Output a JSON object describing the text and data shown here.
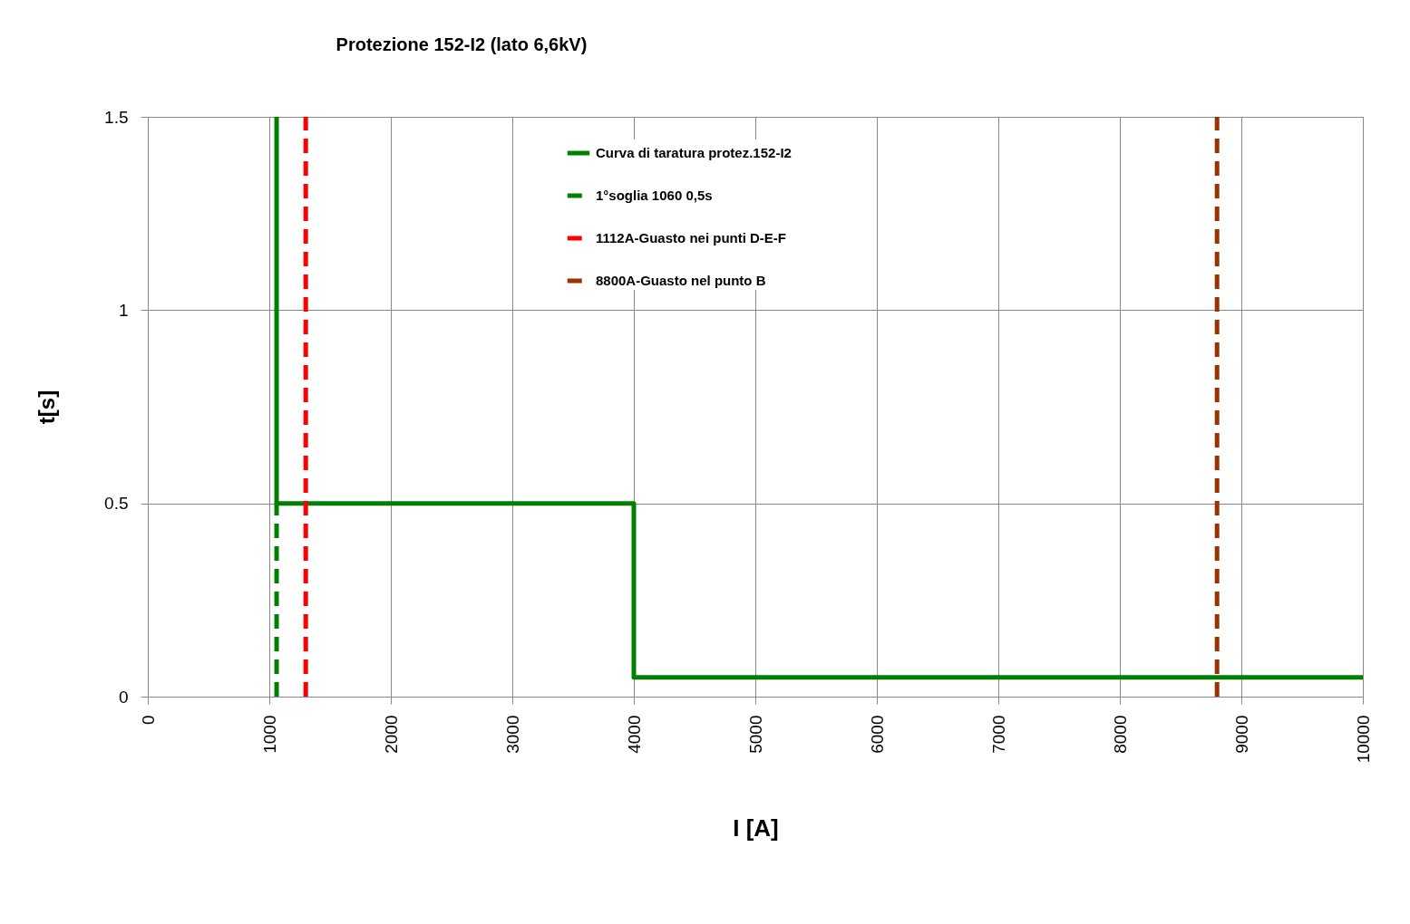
{
  "chart_data": {
    "type": "line",
    "title": "Protezione 152-I2 (lato 6,6kV)",
    "xlabel": "I [A]",
    "ylabel": "t[s]",
    "xlim": [
      0,
      10000
    ],
    "xticks": [
      0,
      1000,
      2000,
      3000,
      4000,
      5000,
      6000,
      7000,
      8000,
      9000,
      10000
    ],
    "ylim": [
      0,
      1.5
    ],
    "yticks": [
      0,
      0.5,
      1,
      1.5
    ],
    "grid": true,
    "legend": "top",
    "marker": "none",
    "series": [
      {
        "name": "Curva di taratura protez.152-I2",
        "color": "#008000",
        "line_style": "solid",
        "x": [
          1060,
          1060,
          4000,
          4000,
          10000
        ],
        "values": [
          1.5,
          0.5,
          0.5,
          0.05,
          0.05
        ]
      },
      {
        "name": "1°soglia 1060 0,5s",
        "color": "#008000",
        "line_style": "dashed",
        "x": [
          1060,
          1060
        ],
        "values": [
          0,
          0.5
        ]
      },
      {
        "name": "1112A-Guasto nei punti D-E-F",
        "color": "#ff0000",
        "line_style": "dashed",
        "x": [
          1300,
          1300
        ],
        "values": [
          0,
          1.5
        ]
      },
      {
        "name": "8800A-Guasto nel punto B",
        "color": "#993300",
        "line_style": "dashed",
        "x": [
          8800,
          8800
        ],
        "values": [
          0,
          1.5
        ]
      }
    ]
  }
}
